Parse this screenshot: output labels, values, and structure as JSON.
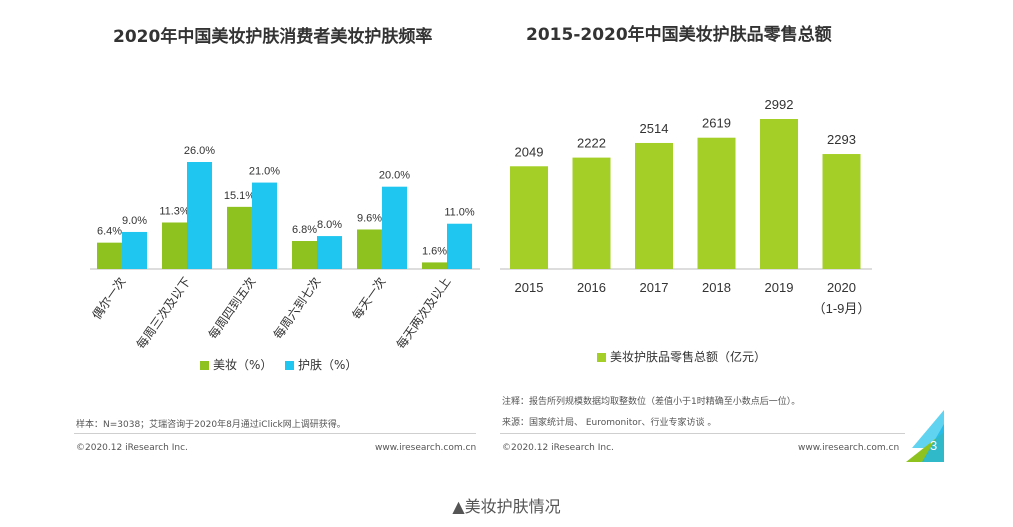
{
  "colors": {
    "makeup": "#8dc21f",
    "skincare": "#1fc6ef",
    "retail": "#a4cf26",
    "accent_blue": "#1fb7e8"
  },
  "left": {
    "title": "2020年中国美妆护肤消费者美妆护肤频率",
    "legend": [
      {
        "label": "美妆（%）",
        "color_key": "makeup"
      },
      {
        "label": "护肤（%）",
        "color_key": "skincare"
      }
    ],
    "note": "样本：N=3038；艾瑞咨询于2020年8月通过iClick网上调研获得。",
    "copyright": "©2020.12 iResearch Inc.",
    "website": "www.iresearch.com.cn"
  },
  "right": {
    "title": "2015-2020年中国美妆护肤品零售总额",
    "legend_label": "美妆护肤品零售总额（亿元）",
    "note1": "注释：报告所列规模数据均取整数位（差值小于1时精确至小数点后一位）。",
    "note2": "来源：国家统计局、 Euromonitor、行业专家访谈 。",
    "copyright": "©2020.12 iResearch Inc.",
    "website": "www.iresearch.com.cn",
    "page_number": "3"
  },
  "caption": "▲美妆护肤情况",
  "chart_data": [
    {
      "type": "bar",
      "title": "2020年中国美妆护肤消费者美妆护肤频率",
      "categories": [
        "偶尔一次",
        "每周三次及以下",
        "每周四到五次",
        "每周六到七次",
        "每天一次",
        "每天两次及以上"
      ],
      "series": [
        {
          "name": "美妆（%）",
          "values": [
            6.4,
            11.3,
            15.1,
            6.8,
            9.6,
            1.6
          ],
          "labels": [
            "6.4%",
            "11.3%",
            "15.1%",
            "6.8%",
            "9.6%",
            "1.6%"
          ]
        },
        {
          "name": "护肤（%）",
          "values": [
            9.0,
            26.0,
            21.0,
            8.0,
            20.0,
            11.0
          ],
          "labels": [
            "9.0%",
            "26.0%",
            "21.0%",
            "8.0%",
            "20.0%",
            "11.0%"
          ]
        }
      ],
      "ylim": [
        0,
        26
      ],
      "legend_position": "bottom",
      "grid": false
    },
    {
      "type": "bar",
      "title": "2015-2020年中国美妆护肤品零售总额",
      "categories": [
        "2015",
        "2016",
        "2017",
        "2018",
        "2019",
        "2020\n（1-9月）"
      ],
      "category_lines": [
        [
          "2015"
        ],
        [
          "2016"
        ],
        [
          "2017"
        ],
        [
          "2018"
        ],
        [
          "2019"
        ],
        [
          "2020",
          "（1-9月）"
        ]
      ],
      "series": [
        {
          "name": "美妆护肤品零售总额（亿元）",
          "values": [
            2049,
            2222,
            2514,
            2619,
            2992,
            2293
          ]
        }
      ],
      "ylim": [
        0,
        2992
      ],
      "legend_position": "bottom",
      "grid": false
    }
  ]
}
